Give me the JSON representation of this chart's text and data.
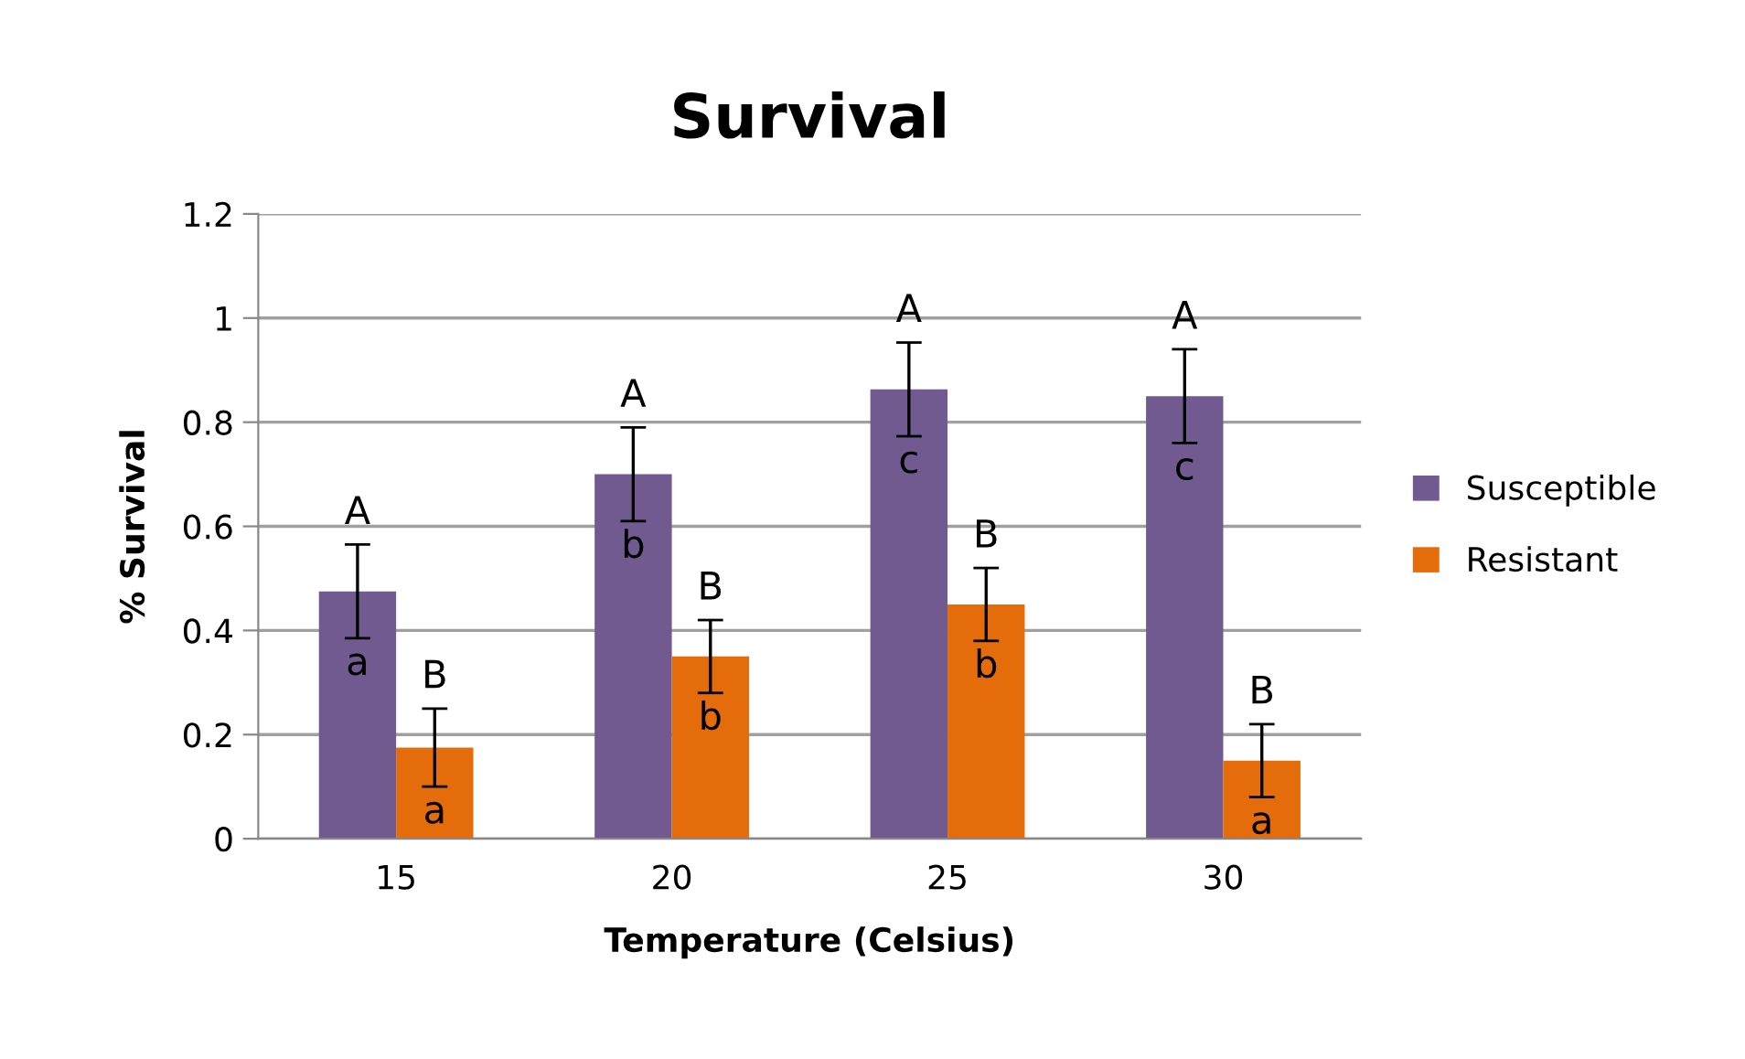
{
  "chart_data": {
    "type": "bar",
    "title": "Survival",
    "xlabel": "Temperature (Celsius)",
    "ylabel": "% Survival",
    "categories": [
      "15",
      "20",
      "25",
      "30"
    ],
    "series": [
      {
        "name": "Susceptible",
        "color": "#705a8f",
        "values": [
          0.475,
          0.7,
          0.863,
          0.85
        ],
        "errors": [
          0.09,
          0.09,
          0.09,
          0.09
        ]
      },
      {
        "name": "Resistant",
        "color": "#e46c0a",
        "values": [
          0.175,
          0.35,
          0.45,
          0.15
        ],
        "errors": [
          0.075,
          0.07,
          0.07,
          0.07
        ]
      }
    ],
    "annotations": [
      "A",
      "a",
      "B",
      "a",
      "A",
      "b",
      "B",
      "b",
      "A",
      "c",
      "B",
      "b",
      "A",
      "c",
      "B",
      "a"
    ],
    "ylim": [
      0,
      1.2
    ],
    "yticks": [
      0,
      0.2,
      0.4,
      0.6,
      0.8,
      1,
      1.2
    ],
    "grid": "y",
    "legend": "right"
  }
}
